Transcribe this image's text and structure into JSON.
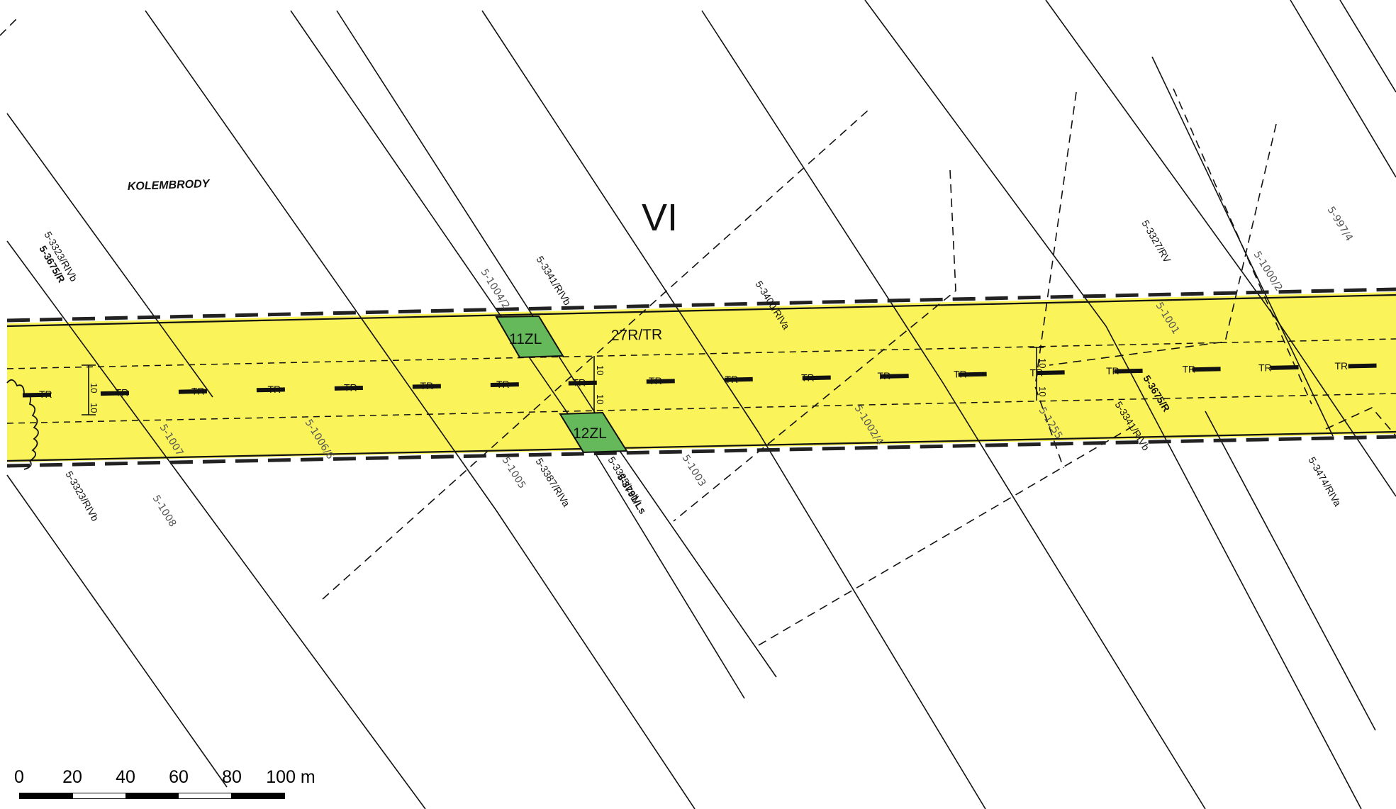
{
  "colors": {
    "corridor_fill": "#fbf35a",
    "green_parcel": "#66b95a",
    "line": "#111111",
    "thin_label": "#555555",
    "background": "#ffffff"
  },
  "place_name": "KOLEMBRODY",
  "section_numeral": "VI",
  "corridor_label": "27R/TR",
  "axis_symbol": "TR",
  "offset_label": "10",
  "green_parcels": [
    {
      "label": "11ZL"
    },
    {
      "label": "12ZL"
    }
  ],
  "parcel_labels": [
    {
      "text": "5-3323/RIVb",
      "style": "normal"
    },
    {
      "text": "5-3675/R",
      "style": "bold"
    },
    {
      "text": "5-1004/2",
      "style": "thin"
    },
    {
      "text": "5-3341/RIVb",
      "style": "normal"
    },
    {
      "text": "5-3400/RIVa",
      "style": "normal"
    },
    {
      "text": "5-3327/RV",
      "style": "normal"
    },
    {
      "text": "5-1000/2",
      "style": "thin"
    },
    {
      "text": "5-997/4",
      "style": "thin"
    },
    {
      "text": "5-1001",
      "style": "thin"
    },
    {
      "text": "5-1007",
      "style": "thin"
    },
    {
      "text": "5-1006/6",
      "style": "thin"
    },
    {
      "text": "5-1002/4",
      "style": "thin"
    },
    {
      "text": "5-1255",
      "style": "thin"
    },
    {
      "text": "5-3675/R",
      "style": "bold"
    },
    {
      "text": "5-3341/RIVb",
      "style": "normal"
    },
    {
      "text": "5-3323/RIVb",
      "style": "normal"
    },
    {
      "text": "5-1008",
      "style": "thin"
    },
    {
      "text": "5-1005",
      "style": "thin"
    },
    {
      "text": "5-3387/RIVa",
      "style": "normal"
    },
    {
      "text": "5-3325/LsIV",
      "style": "normal"
    },
    {
      "text": "5-3791/Ls",
      "style": "bold"
    },
    {
      "text": "5-1003",
      "style": "thin"
    },
    {
      "text": "5-3474/RIVa",
      "style": "normal"
    }
  ],
  "scale_bar": {
    "labels": [
      "0",
      "20",
      "40",
      "60",
      "80",
      "100 m"
    ],
    "values": [
      0,
      20,
      40,
      60,
      80,
      100
    ],
    "unit": "m"
  }
}
